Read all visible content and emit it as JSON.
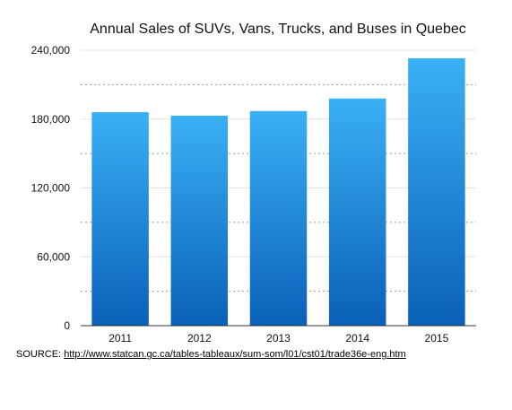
{
  "chart_data": {
    "type": "bar",
    "title": "Annual Sales of SUVs, Vans, Trucks, and Buses in Quebec",
    "xlabel": "",
    "ylabel": "",
    "categories": [
      "2011",
      "2012",
      "2013",
      "2014",
      "2015"
    ],
    "values": [
      186000,
      183000,
      187000,
      198000,
      233000
    ],
    "ylim": [
      0,
      240000
    ],
    "y_ticks": [
      0,
      60000,
      120000,
      180000,
      240000
    ],
    "y_tick_labels": [
      "0",
      "60,000",
      "120,000",
      "180,000",
      "240,000"
    ],
    "grid": true,
    "bar_color_top": "#3ab0f5",
    "bar_color_bottom": "#0a60b8"
  },
  "source": {
    "label": "SOURCE:",
    "url_text": "http://www.statcan.gc.ca/tables-tableaux/sum-som/l01/cst01/trade36e-eng.htm"
  }
}
